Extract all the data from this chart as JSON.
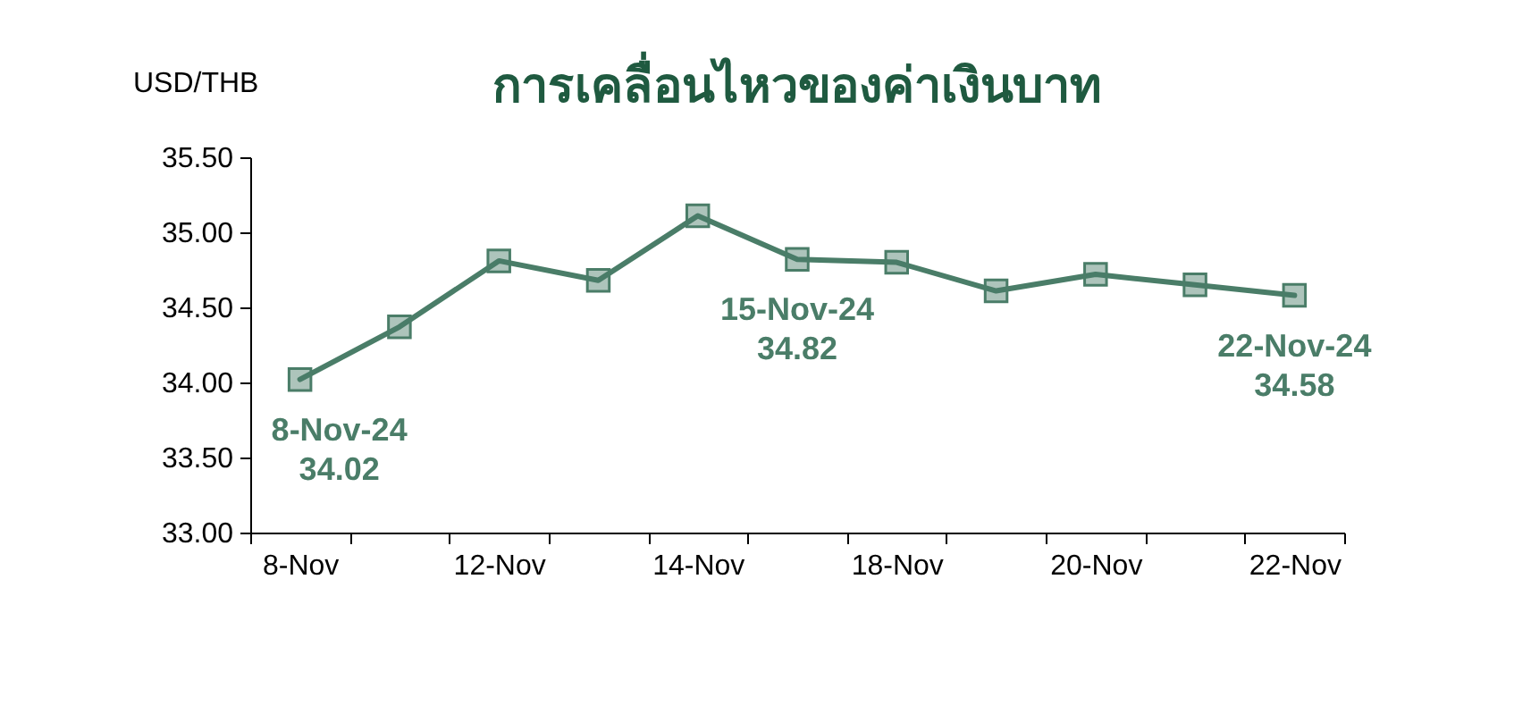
{
  "chart_data": {
    "type": "line",
    "title": "การเคลื่อนไหวของค่าเงินบาท",
    "ylabel": "USD/THB",
    "categories": [
      "8-Nov",
      null,
      "12-Nov",
      null,
      "14-Nov",
      null,
      "18-Nov",
      null,
      "20-Nov",
      null,
      "22-Nov"
    ],
    "series": [
      {
        "color": "#4a7d68",
        "values": [
          34.02,
          34.37,
          34.81,
          34.68,
          35.11,
          34.82,
          34.8,
          34.61,
          34.72,
          34.65,
          34.58
        ],
        "value_labels": [
          "8-Nov-24\n34.02",
          null,
          null,
          null,
          null,
          "15-Nov-24\n34.82",
          null,
          null,
          null,
          null,
          "22-Nov-24\n34.58"
        ]
      }
    ],
    "ylim": [
      33,
      35.5
    ],
    "yticks": [
      {
        "value": 33,
        "label": "33.00"
      },
      {
        "value": 33.5,
        "label": "33.50"
      },
      {
        "value": 34,
        "label": "34.00"
      },
      {
        "value": 34.5,
        "label": "34.50"
      },
      {
        "value": 35,
        "label": "35.00"
      },
      {
        "value": 35.5,
        "label": "35.50"
      }
    ],
    "grid": false,
    "marker": "square"
  }
}
